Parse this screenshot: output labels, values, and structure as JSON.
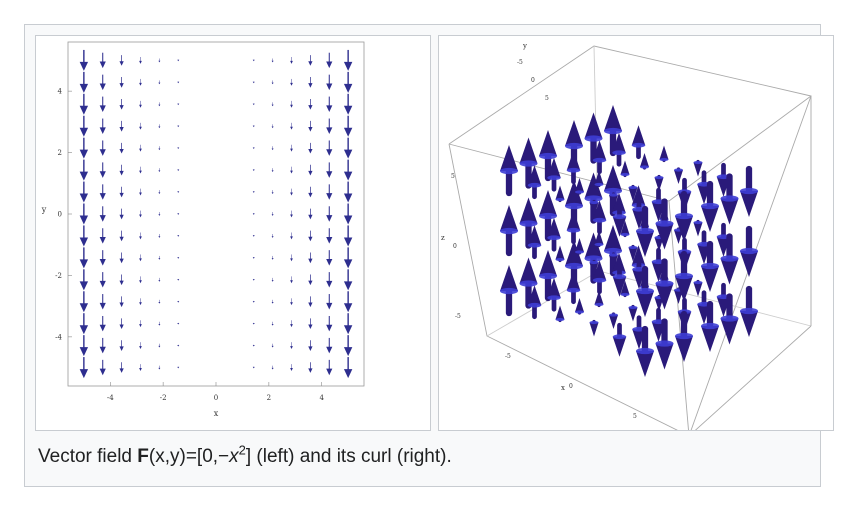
{
  "left_plot": {
    "x_ticks": [
      "-4",
      "-2",
      "0",
      "2",
      "4"
    ],
    "y_ticks": [
      "4",
      "2",
      "0",
      "-2",
      "-4"
    ],
    "xlabel": "x",
    "ylabel": "y"
  },
  "right_plot": {
    "x_ticks": [
      "-5",
      "0",
      "5"
    ],
    "y_ticks": [
      "-5",
      "0",
      "5"
    ],
    "z_ticks": [
      "5",
      "0",
      "-5"
    ],
    "xlabel": "x",
    "ylabel": "y",
    "zlabel": "z"
  },
  "caption": {
    "prefix": "Vector field ",
    "bold": "F",
    "middle": "(x,y)=[0,−",
    "var": "x",
    "sup": "2",
    "suffix": "] (left) and its curl (right)."
  },
  "colors": {
    "arrow_2d": "#2e2e8f",
    "arrow_3d": "#2a1a7a",
    "arrow_3d_light": "#3d3dd4"
  }
}
